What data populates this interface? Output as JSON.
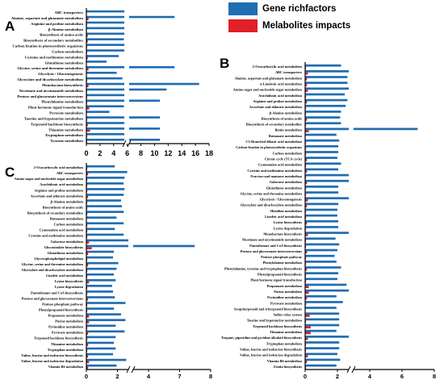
{
  "legend": {
    "entries": [
      {
        "label": "Gene richfactors",
        "color": "#1f6db3"
      },
      {
        "label": "Melabolites impacts",
        "color": "#e01f26"
      }
    ]
  },
  "chart_data": [
    {
      "panel": "A",
      "type": "bar",
      "orientation": "horizontal",
      "axis_break": true,
      "xticks": [
        "0",
        "2",
        "4",
        "6",
        "8",
        "10",
        "12",
        "14",
        "16",
        "18"
      ],
      "categories": [
        "ABC transporters",
        "Alanine, aspartate and glutamate metabolism",
        "Arginine and proline metabolism",
        "β-Alanine metabolism",
        "Biosynthesis of amino acids",
        "Biosynthesis of secondary metabolites",
        "Carbon fixation in photosynthetic organisms",
        "Carbon metabolism",
        "Cysteine and methionine metabolism",
        "Glutathione metabolism",
        "Glycine, serine and threonine metabolism",
        "Glycolysis / Gluconeogenesis",
        "Glyoxylate and dicarboxylate metabolism",
        "Monobactam biosynthesis",
        "Nicotinate and nicotinamide metabolism",
        "Pentose and glucuronate interconversions",
        "Phenylalanine metabolism",
        "Plant hormone signal transduction",
        "Pyruvate metabolism",
        "Taurine and hypotaurine metabolism",
        "Terpenoid backbone biosynthesis",
        "Thiamine metabolism",
        "Tryptophan metabolism",
        "Tyrosine metabolism"
      ],
      "series": [
        {
          "name": "Gene richfactors",
          "values": [
            5.6,
            12.8,
            5.6,
            5.5,
            5.6,
            5.2,
            5.4,
            5.3,
            4.5,
            2.8,
            12.8,
            4.2,
            5.0,
            16.5,
            11.6,
            5.5,
            10.6,
            5.2,
            3.2,
            10.6,
            5.8,
            10.6,
            5.8,
            10.6
          ]
        },
        {
          "name": "Melabolites impacts",
          "values": [
            0.0,
            0.3,
            0.1,
            0.0,
            0.2,
            0.2,
            0.1,
            0.1,
            0.2,
            0.0,
            0.3,
            0.0,
            0.1,
            0.3,
            0.1,
            0.1,
            0.1,
            0.4,
            0.0,
            0.1,
            0.2,
            0.5,
            0.1,
            0.1
          ]
        }
      ]
    },
    {
      "panel": "B",
      "type": "bar",
      "orientation": "horizontal",
      "axis_break": true,
      "xticks": [
        "0",
        "2",
        "4",
        "6",
        "8"
      ],
      "categories": [
        "2-Oxocarboxylic acid metabolism",
        "ABC transporters",
        "Alanine, aspartate and glutamate metabolism",
        "α-Linolenic acid metabolism",
        "Amino sugar and nucleotide sugar metabolism",
        "Arachidonic acid metabolism",
        "Arginine and proline metabolism",
        "Ascorbate and aldarate metabolism",
        "β-Alanine metabolism",
        "Biosynthesis of amino acids",
        "Biosynthesis of secondary metabolites",
        "Biotin metabolism",
        "Butanoate metabolism",
        "C5-Branched dibasic acid metabolism",
        "Carbon fixation in photosynthetic organisms",
        "Carbon metabolism",
        "Citrate cycle (TCA cycle)",
        "Cyanoamino acid metabolism",
        "Cysteine and methionine metabolism",
        "Fructose and mannose metabolism",
        "Galactose metabolism",
        "Glutathione metabolism",
        "Glycine, serine and threonine metabolism",
        "Glycolysis / Gluconeogenesis",
        "Glyoxylate and dicarboxylate metabolism",
        "Histidine metabolism",
        "Linoleic acid metabolism",
        "Lysine biosynthesis",
        "Lysine degradation",
        "Monobactam biosynthesis",
        "Nicotinate and nicotinamide metabolism",
        "Pantothenate and CoA biosynthesis",
        "Pentose and glucuronate interconversions",
        "Pentose phosphate pathway",
        "Phenylalanine metabolism",
        "Phenylalanine, tyrosine and tryptophan biosynthesis",
        "Phenylpropanoid biosynthesis",
        "Plant hormone signal transduction",
        "Propanoate metabolism",
        "Purine metabolism",
        "Pyrimidine metabolism",
        "Pyruvate metabolism",
        "Sesquiterpenoid and triterpenoid biosynthesis",
        "Sulfur relay system",
        "Taurine and hypotaurine metabolism",
        "Terpenoid backbone biosynthesis",
        "Thiamine metabolism",
        "Tropane, piperidine and pyridine alkaloid biosynthesis",
        "Tryptophan metabolism",
        "Valine, leucine and isoleucine biosynthesis",
        "Valine, leucine and isoleucine degradation",
        "Vitamin B6 metabolism",
        "Zeatin biosynthesis"
      ],
      "series": [
        {
          "name": "Gene richfactors",
          "values": [
            3.9,
            4.9,
            4.6,
            4.6,
            4.9,
            4.3,
            4.6,
            4.4,
            3.9,
            3.8,
            3.9,
            7.4,
            3.4,
            3.7,
            3.6,
            3.6,
            3.5,
            3.9,
            3.6,
            4.9,
            4.8,
            3.6,
            3.6,
            4.9,
            3.6,
            3.5,
            3.5,
            3.6,
            3.6,
            4.9,
            3.3,
            3.7,
            3.5,
            3.2,
            3.4,
            3.9,
            3.6,
            3.5,
            4.5,
            4.9,
            3.4,
            4.1,
            3.4,
            3.7,
            3.7,
            3.7,
            3.4,
            4.9,
            3.7,
            3.7,
            3.5,
            3.8,
            3.4
          ]
        },
        {
          "name": "Melabolites impacts",
          "values": [
            0.1,
            0.3,
            0.2,
            0.2,
            0.3,
            0.1,
            0.2,
            0.1,
            0.1,
            0.2,
            0.1,
            0.4,
            0.0,
            0.1,
            0.1,
            0.1,
            0.2,
            0.1,
            0.2,
            0.1,
            0.2,
            0.1,
            0.1,
            0.3,
            0.2,
            0.1,
            0.1,
            0.2,
            0.1,
            0.3,
            0.1,
            0.1,
            0.2,
            0.1,
            0.1,
            0.2,
            0.1,
            0.1,
            0.4,
            0.4,
            0.2,
            0.1,
            0.0,
            0.5,
            0.1,
            0.6,
            0.6,
            0.3,
            0.1,
            0.1,
            0.3,
            0.2,
            0.1
          ]
        }
      ]
    },
    {
      "panel": "C",
      "type": "bar",
      "orientation": "horizontal",
      "axis_break": true,
      "xticks": [
        "0",
        "2",
        "4",
        "7",
        "8"
      ],
      "categories": [
        "2-Oxocarboxylic acid metabolism",
        "ABC transporters",
        "Amino sugar and nucleotide sugar metabolism",
        "Arachidonic acid metabolism",
        "Arginine and proline metabolism",
        "Ascorbate and aldarate metabolism",
        "β-Alanine metabolism",
        "Biosynthesis of amino acids",
        "Biosynthesis of secondary metabolites",
        "Butanoate metabolism",
        "Carbon metabolism",
        "Cyanoamino acid metabolism",
        "Cysteine and methionine metabolism",
        "Galactose metabolism",
        "Glucosinolate biosynthesis",
        "Glutathione metabolism",
        "Glycerophospholipid metabolism",
        "Glycine, serine and threonine metabolism",
        "Glyoxylate and dicarboxylate metabolism",
        "Linoleic acid metabolism",
        "Lysine biosynthesis",
        "Lysine degradation",
        "Pantothenate and CoA biosynthesis",
        "Pentose and glucuronate interconversions",
        "Pentose phosphate pathway",
        "Phenylpropanoid biosynthesis",
        "Propanoate metabolism",
        "Purine metabolism",
        "Pyrimidine metabolism",
        "Pyruvate metabolism",
        "Terpenoid backbone biosynthesis",
        "Thiamine metabolism",
        "Tryptophan metabolism",
        "Valine, leucine and isoleucine biosynthesis",
        "Valine, leucine and isoleucine degradation",
        "Vitamin B6 metabolism"
      ],
      "series": [
        {
          "name": "Gene richfactors",
          "values": [
            3.2,
            4.6,
            4.3,
            4.2,
            4.3,
            4.2,
            3.9,
            4.0,
            4.2,
            3.4,
            4.2,
            3.2,
            4.2,
            4.8,
            7.4,
            3.1,
            3.0,
            3.6,
            3.4,
            3.1,
            3.3,
            2.9,
            3.0,
            3.2,
            4.4,
            3.1,
            3.9,
            4.4,
            3.3,
            4.3,
            3.3,
            3.1,
            3.3,
            3.0,
            4.5,
            3.4
          ]
        },
        {
          "name": "Melabolites impacts",
          "values": [
            0.1,
            0.2,
            0.1,
            0.1,
            0.1,
            0.2,
            0.1,
            0.1,
            0.1,
            0.0,
            0.1,
            0.1,
            0.1,
            0.3,
            0.6,
            0.2,
            0.1,
            0.2,
            0.1,
            0.1,
            0.3,
            0.1,
            0.1,
            0.2,
            0.1,
            0.1,
            0.3,
            0.3,
            0.1,
            0.2,
            0.1,
            0.2,
            0.1,
            0.2,
            0.3,
            0.2
          ]
        }
      ]
    }
  ]
}
